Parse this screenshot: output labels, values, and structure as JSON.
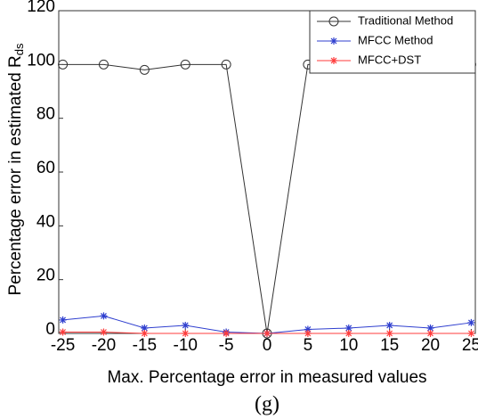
{
  "chart_data": {
    "type": "line",
    "xlabel": "Max. Percentage error in measured values",
    "ylabel": "Percentage error in estimated R",
    "ylabel_sub": "ds",
    "caption": "(g)",
    "x": [
      -25,
      -20,
      -15,
      -10,
      -5,
      0,
      5,
      10,
      15,
      20,
      25
    ],
    "series": [
      {
        "name": "Traditional Method",
        "color": "#333333",
        "marker": "o",
        "values": [
          100,
          100,
          98,
          100,
          100,
          0,
          100,
          100,
          100,
          100,
          100
        ]
      },
      {
        "name": "MFCC Method",
        "color": "#2f3fcf",
        "marker": "*",
        "values": [
          5,
          6.5,
          2,
          3,
          0.5,
          0,
          1.5,
          2,
          3,
          2,
          4
        ]
      },
      {
        "name": "MFCC+DST",
        "color": "#ff3b3b",
        "marker": "*",
        "values": [
          0.5,
          0.5,
          0,
          0,
          0,
          0,
          0,
          0,
          0,
          0,
          0
        ]
      }
    ],
    "xlim": [
      -25.5,
      25.5
    ],
    "ylim": [
      0,
      120
    ],
    "xticks": [
      -25,
      -20,
      -15,
      -10,
      -5,
      0,
      5,
      10,
      15,
      20,
      25
    ],
    "yticks": [
      0,
      20,
      40,
      60,
      80,
      100,
      120
    ],
    "grid": false,
    "legend": "upper right"
  }
}
